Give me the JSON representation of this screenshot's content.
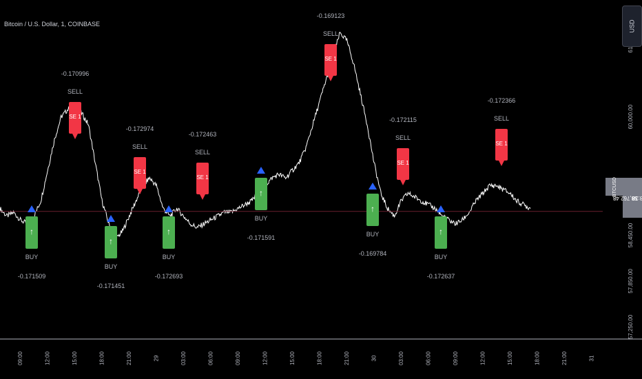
{
  "header": {
    "symbol_line": "Bitcoin / U.S. Dollar, 1, COINBASE"
  },
  "currency_button": {
    "label": "USD"
  },
  "price_tag": {
    "symbol": "BTCUSD",
    "value": "58,762.48",
    "countdown": "08:38"
  },
  "colors": {
    "background": "#000000",
    "price_line": "#ffffff",
    "sell": "#f23645",
    "buy": "#4caf50",
    "current_line": "#6b1f2e",
    "axis_text": "#b2b5be"
  },
  "chart_data": {
    "type": "line",
    "title": "",
    "xlabel": "",
    "ylabel": "",
    "ylim": [
      57200,
      61350
    ],
    "y_ticks": [
      {
        "value": 61000,
        "label": "61,000.00"
      },
      {
        "value": 60000,
        "label": "60,000.00"
      },
      {
        "value": 58450,
        "label": "58,450.00"
      },
      {
        "value": 57850,
        "label": "57,850.00"
      },
      {
        "value": 57250,
        "label": "57,250.00"
      }
    ],
    "x_ticks": [
      "09:00",
      "12:00",
      "15:00",
      "18:00",
      "21:00",
      "29",
      "03:00",
      "06:00",
      "09:00",
      "12:00",
      "15:00",
      "18:00",
      "21:00",
      "30",
      "03:00",
      "06:00",
      "09:00",
      "12:00",
      "15:00",
      "18:00",
      "21:00",
      "31"
    ],
    "current_price": 58762.48,
    "series": [
      {
        "values": [
          58800,
          58700,
          58750,
          58650,
          58600,
          58700,
          58900,
          59300,
          59700,
          60000,
          60100,
          60150,
          60050,
          59900,
          59400,
          58900,
          58600,
          58400,
          58500,
          58700,
          58900,
          59100,
          59200,
          59100,
          58800,
          58700,
          58800,
          58700,
          58600,
          58550,
          58600,
          58650,
          58700,
          58750,
          58750,
          58800,
          58850,
          58900,
          59000,
          59100,
          59200,
          59250,
          59200,
          59300,
          59400,
          59600,
          59900,
          60200,
          60500,
          60800,
          61100,
          61000,
          60700,
          60300,
          59900,
          59400,
          59000,
          58800,
          58700,
          58900,
          59000,
          58950,
          58900,
          58850,
          58800,
          58700,
          58650,
          58600,
          58650,
          58750,
          58900,
          59000,
          59100,
          59100,
          59050,
          59000,
          58900,
          58850,
          58800
        ]
      }
    ],
    "signals": [
      {
        "type": "buy",
        "label": "BUY",
        "value": "-0.171509",
        "marker": "↑"
      },
      {
        "type": "sell",
        "label": "SELL",
        "value": "-0.170996",
        "marker": "SE 1"
      },
      {
        "type": "buy",
        "label": "BUY",
        "value": "-0.171451",
        "marker": "↑"
      },
      {
        "type": "sell",
        "label": "SELL",
        "value": "-0.172974",
        "marker": "SE 1"
      },
      {
        "type": "buy",
        "label": "BUY",
        "value": "-0.172693",
        "marker": "↑"
      },
      {
        "type": "sell",
        "label": "SELL",
        "value": "-0.172463",
        "marker": "SE 1"
      },
      {
        "type": "buy",
        "label": "BUY",
        "value": "-0.171591",
        "marker": "↑"
      },
      {
        "type": "sell",
        "label": "SELL",
        "value": "-0.169123",
        "marker": "SE 1"
      },
      {
        "type": "buy",
        "label": "BUY",
        "value": "-0.169784",
        "marker": "↑"
      },
      {
        "type": "sell",
        "label": "SELL",
        "value": "-0.172115",
        "marker": "SE 1"
      },
      {
        "type": "buy",
        "label": "BUY",
        "value": "-0.172637",
        "marker": "↑"
      },
      {
        "type": "sell",
        "label": "SELL",
        "value": "-0.172366",
        "marker": "SE 1"
      }
    ]
  }
}
